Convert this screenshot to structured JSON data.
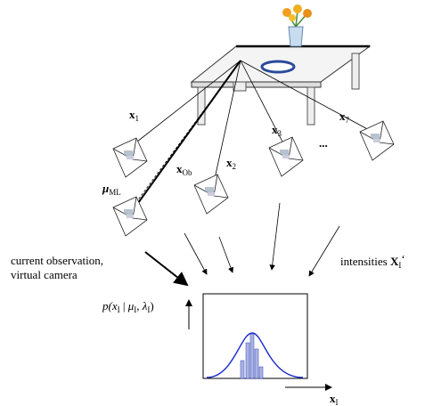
{
  "vectors": [
    {
      "base": "x",
      "sub": "1"
    },
    {
      "base": "x",
      "sub": "Ob"
    },
    {
      "base": "x",
      "sub": "2"
    },
    {
      "base": "x",
      "sub": "3"
    },
    {
      "base": "x",
      "sub": "7"
    },
    {
      "base": "μ",
      "sub": "ML"
    }
  ],
  "ellipsis": "...",
  "left_caption": [
    "current observation,",
    "virtual camera"
  ],
  "right_caption": {
    "text": "intensities ",
    "base": "X",
    "sub": "I",
    "suffix": "‘"
  },
  "plot": {
    "y_label": [
      "p(",
      "x",
      "I",
      " | ",
      "μ",
      "I",
      ", ",
      "λ",
      "I",
      ")"
    ],
    "x_label": {
      "base": "x",
      "sub": "I"
    }
  }
}
